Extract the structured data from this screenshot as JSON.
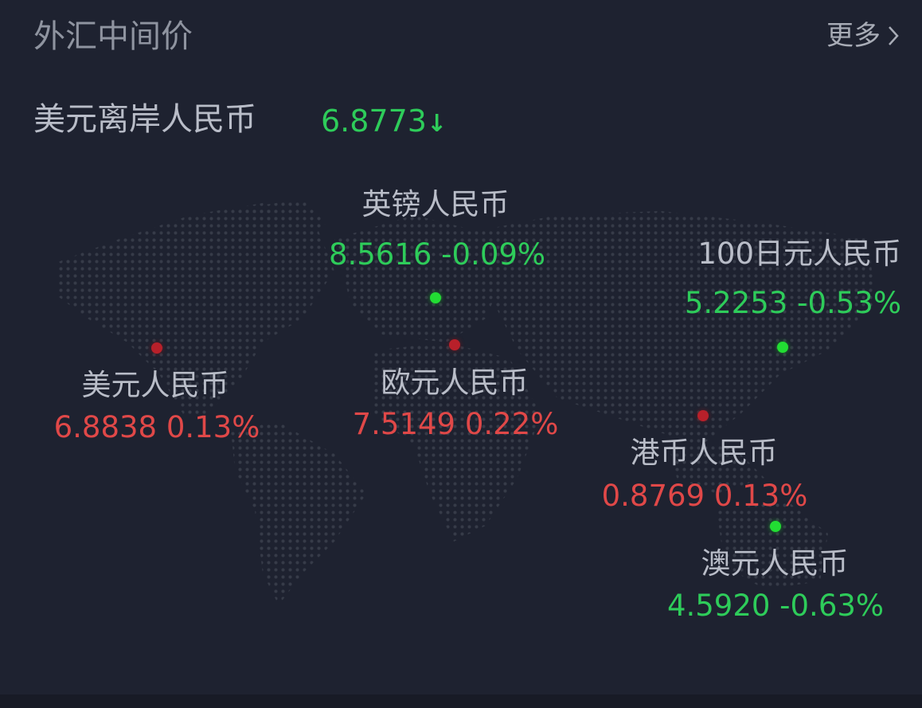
{
  "header": {
    "title": "外汇中间价",
    "more_label": "更多",
    "more_icon": "chevron-right-icon"
  },
  "hero": {
    "label": "美元离岸人民币",
    "value": "6.8773",
    "trend_icon": "arrow-down-icon",
    "trend": "↓"
  },
  "colors": {
    "up": "#e04848",
    "down": "#2ecc5a",
    "background": "#1e2230"
  },
  "rates": [
    {
      "id": "gbp",
      "label": "英镑人民币",
      "value": "8.5616 -0.09%",
      "direction": "down"
    },
    {
      "id": "jpy",
      "label": "100日元人民币",
      "value": "5.2253 -0.53%",
      "direction": "down"
    },
    {
      "id": "usd",
      "label": "美元人民币",
      "value": "6.8838 0.13%",
      "direction": "up"
    },
    {
      "id": "eur",
      "label": "欧元人民币",
      "value": "7.5149 0.22%",
      "direction": "up"
    },
    {
      "id": "hkd",
      "label": "港币人民币",
      "value": "0.8769 0.13%",
      "direction": "up"
    },
    {
      "id": "aud",
      "label": "澳元人民币",
      "value": "4.5920 -0.63%",
      "direction": "down"
    }
  ]
}
